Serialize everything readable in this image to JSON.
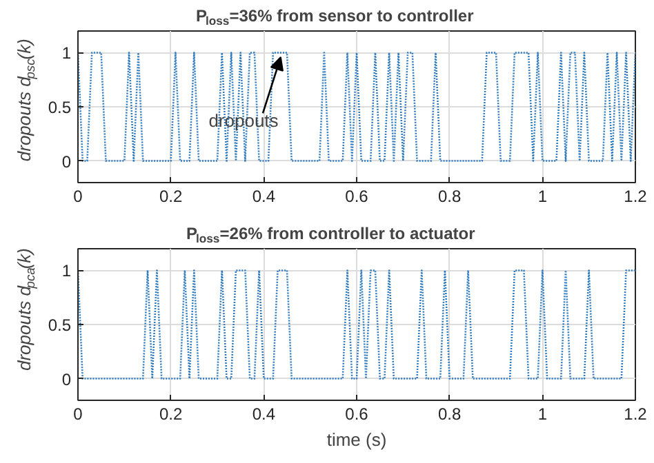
{
  "chart_data": [
    {
      "type": "line",
      "title": "P$_{loss}$=36% from sensor to controller",
      "ylabel": "dropouts d$_{psc}$(k)",
      "line_style": "dotted",
      "marker": "none",
      "grid": true,
      "xlim": [
        0,
        1.2
      ],
      "ylim": [
        -0.2,
        1.2
      ],
      "xticks": [
        0,
        0.2,
        0.4,
        0.6,
        0.8,
        1,
        1.2
      ],
      "yticks": [
        0,
        0.5,
        1
      ],
      "annotations": [
        {
          "text": "dropouts",
          "x": 0.44,
          "y": 1
        }
      ],
      "series": [
        {
          "color": "#2f7bbf",
          "x": [
            0,
            0.01,
            0.02,
            0.03,
            0.05,
            0.06,
            0.1,
            0.11,
            0.12,
            0.13,
            0.14,
            0.2,
            0.21,
            0.22,
            0.24,
            0.25,
            0.26,
            0.3,
            0.31,
            0.32,
            0.33,
            0.34,
            0.35,
            0.36,
            0.37,
            0.38,
            0.39,
            0.41,
            0.42,
            0.45,
            0.46,
            0.52,
            0.53,
            0.54,
            0.57,
            0.58,
            0.59,
            0.6,
            0.61,
            0.63,
            0.64,
            0.65,
            0.66,
            0.67,
            0.68,
            0.69,
            0.7,
            0.71,
            0.72,
            0.73,
            0.76,
            0.77,
            0.78,
            0.87,
            0.88,
            0.9,
            0.91,
            0.93,
            0.94,
            0.97,
            0.98,
            0.99,
            1.0,
            1.03,
            1.04,
            1.05,
            1.06,
            1.07,
            1.08,
            1.09,
            1.1,
            1.13,
            1.14,
            1.15,
            1.16,
            1.17,
            1.18,
            1.19,
            1.2
          ],
          "values": [
            1,
            0,
            0,
            1,
            1,
            0,
            0,
            1,
            0,
            1,
            0,
            0,
            1,
            0,
            0,
            1,
            0,
            0,
            1,
            0,
            1,
            0,
            1,
            0,
            1,
            1,
            0,
            0,
            1,
            1,
            0,
            0,
            1,
            0,
            0,
            1,
            0,
            1,
            0,
            0,
            1,
            0,
            0,
            1,
            0,
            1,
            0,
            1,
            1,
            0,
            0,
            1,
            0,
            0,
            1,
            1,
            0,
            0,
            1,
            1,
            0,
            1,
            0,
            0,
            1,
            0,
            1,
            1,
            0,
            1,
            0,
            0,
            1,
            0,
            1,
            0,
            1,
            0,
            1
          ]
        }
      ]
    },
    {
      "type": "line",
      "title": "P$_{loss}$=26% from controller to actuator",
      "ylabel": "dropouts d$_{pca}$(k)",
      "xlabel": "time (s)",
      "line_style": "dotted",
      "marker": "none",
      "grid": true,
      "xlim": [
        0,
        1.2
      ],
      "ylim": [
        -0.2,
        1.2
      ],
      "xticks": [
        0,
        0.2,
        0.4,
        0.6,
        0.8,
        1,
        1.2
      ],
      "yticks": [
        0,
        0.5,
        1
      ],
      "series": [
        {
          "color": "#2f7bbf",
          "x": [
            0,
            0.01,
            0.14,
            0.15,
            0.16,
            0.17,
            0.18,
            0.22,
            0.23,
            0.24,
            0.25,
            0.26,
            0.3,
            0.31,
            0.32,
            0.33,
            0.34,
            0.36,
            0.37,
            0.38,
            0.39,
            0.4,
            0.42,
            0.43,
            0.45,
            0.46,
            0.57,
            0.58,
            0.59,
            0.6,
            0.61,
            0.62,
            0.63,
            0.64,
            0.65,
            0.66,
            0.67,
            0.68,
            0.73,
            0.74,
            0.75,
            0.78,
            0.79,
            0.8,
            0.83,
            0.84,
            0.85,
            0.93,
            0.94,
            0.96,
            0.97,
            0.99,
            1.0,
            1.01,
            1.04,
            1.05,
            1.06,
            1.09,
            1.1,
            1.11,
            1.17,
            1.18,
            1.2
          ],
          "values": [
            1,
            0,
            0,
            1,
            0,
            1,
            0,
            0,
            1,
            0,
            1,
            0,
            0,
            1,
            0,
            0,
            1,
            1,
            0,
            0,
            1,
            0,
            0,
            1,
            1,
            0,
            0,
            1,
            0,
            0,
            1,
            0,
            1,
            1,
            0,
            0,
            1,
            0,
            0,
            1,
            0,
            0,
            1,
            0,
            0,
            1,
            0,
            0,
            1,
            1,
            0,
            0,
            1,
            0,
            0,
            1,
            0,
            0,
            1,
            0,
            0,
            1,
            1
          ]
        }
      ]
    }
  ]
}
